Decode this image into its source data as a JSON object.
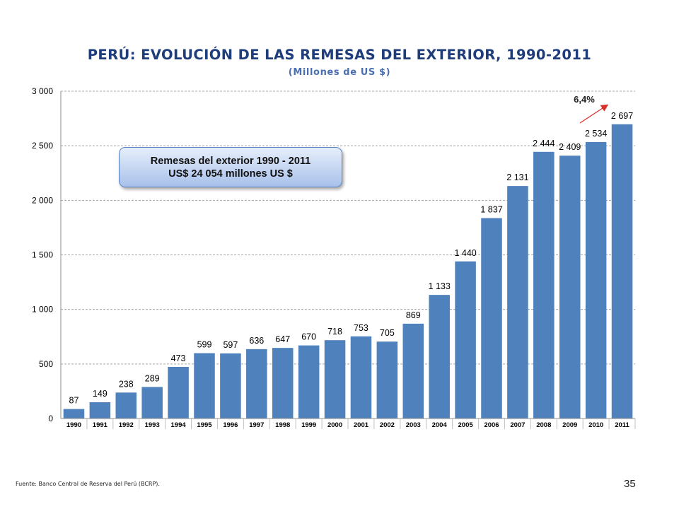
{
  "title": "PERÚ: EVOLUCIÓN DE LAS REMESAS DEL EXTERIOR, 1990-2011",
  "subtitle": "(Millones de US $)",
  "callout": {
    "line1": "Remesas del exterior  1990 - 2011",
    "line2": "US$ 24 054 millones US $"
  },
  "growth_annotation": "6,4%",
  "source": "Fuente: Banco Central de Reserva del Perú (BCRP).",
  "page_number": "35",
  "colors": {
    "bar": "#4f81bd",
    "title": "#1f3d7a",
    "subtitle": "#4a6fb0",
    "arrow": "#d9302b",
    "grid": "#a6a6a6"
  },
  "chart_data": {
    "type": "bar",
    "categories": [
      "1990",
      "1991",
      "1992",
      "1993",
      "1994",
      "1995",
      "1996",
      "1997",
      "1998",
      "1999",
      "2000",
      "2001",
      "2002",
      "2003",
      "2004",
      "2005",
      "2006",
      "2007",
      "2008",
      "2009",
      "2010",
      "2011"
    ],
    "values": [
      87,
      149,
      238,
      289,
      473,
      599,
      597,
      636,
      647,
      670,
      718,
      753,
      705,
      869,
      1133,
      1440,
      1837,
      2131,
      2444,
      2409,
      2534,
      2697
    ],
    "data_labels": [
      "87",
      "149",
      "238",
      "289",
      "473",
      "599",
      "597",
      "636",
      "647",
      "670",
      "718",
      "753",
      "705",
      "869",
      "1 133",
      "1 440",
      "1 837",
      "2 131",
      "2 444",
      "2 409",
      "2 534",
      "2 697"
    ],
    "ylim": [
      0,
      3000
    ],
    "yticks": [
      0,
      500,
      1000,
      1500,
      2000,
      2500,
      3000
    ],
    "ytick_labels": [
      "0",
      "500",
      "1 000",
      "1 500",
      "2 000",
      "2 500",
      "3 000"
    ],
    "grid": true,
    "legend": "none"
  }
}
